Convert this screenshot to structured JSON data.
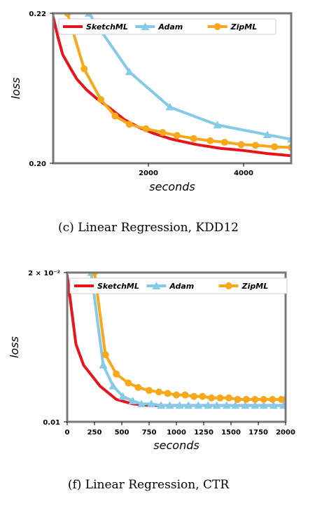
{
  "chart_data": [
    {
      "type": "line",
      "caption": "(c)  Linear Regression, KDD12",
      "xlabel": "seconds",
      "ylabel": "loss",
      "xlim": [
        0,
        5000
      ],
      "ylim": [
        0.2,
        0.22
      ],
      "xticks": [
        2000,
        4000
      ],
      "xtick_labels": [
        "2000",
        "4000"
      ],
      "yticks": [
        0.2,
        0.22
      ],
      "ytick_labels": [
        "0.20",
        "0.22"
      ],
      "legend": "top",
      "series": [
        {
          "name": "SketchML",
          "color": "#e8141b",
          "marker": "none",
          "x": [
            0,
            100,
            200,
            350,
            500,
            700,
            900,
            1200,
            1500,
            1800,
            2100,
            2500,
            3000,
            3500,
            4000,
            4500,
            5000
          ],
          "y": [
            0.2195,
            0.2168,
            0.2145,
            0.2128,
            0.2112,
            0.2098,
            0.2087,
            0.2073,
            0.2058,
            0.2048,
            0.204,
            0.2032,
            0.2025,
            0.202,
            0.2017,
            0.2013,
            0.201
          ]
        },
        {
          "name": "Adam",
          "color": "#87c9e8",
          "marker": "triangle",
          "x": [
            750,
            1600,
            2450,
            3450,
            4500,
            5000
          ],
          "y": [
            0.22,
            0.2122,
            0.2075,
            0.2051,
            0.2038,
            0.2032
          ]
        },
        {
          "name": "ZipML",
          "color": "#f7a81b",
          "marker": "circle",
          "x": [
            300,
            650,
            1000,
            1300,
            1600,
            1950,
            2300,
            2600,
            2950,
            3300,
            3600,
            3950,
            4250,
            4650,
            5000
          ],
          "y": [
            0.22,
            0.2126,
            0.2085,
            0.2063,
            0.2052,
            0.2046,
            0.2041,
            0.2037,
            0.2033,
            0.203,
            0.2028,
            0.2025,
            0.2024,
            0.2022,
            0.2021
          ]
        }
      ]
    },
    {
      "type": "line",
      "caption": "(f)  Linear Regression, CTR",
      "xlabel": "seconds",
      "ylabel": "loss",
      "xlim": [
        0,
        2000
      ],
      "ylim": [
        0.01,
        0.02
      ],
      "ytick_labels": [
        "2 × 10⁻²",
        "0.01"
      ],
      "xticks": [
        0,
        250,
        500,
        750,
        1000,
        1250,
        1500,
        1750,
        2000
      ],
      "xtick_labels": [
        "0",
        "250",
        "500",
        "750",
        "1000",
        "1250",
        "1500",
        "1750",
        "2000"
      ],
      "legend": "top",
      "series": [
        {
          "name": "SketchML",
          "color": "#e8141b",
          "marker": "none",
          "x": [
            0,
            80,
            150,
            300,
            450,
            600,
            750,
            900,
            1100,
            1300,
            1500,
            1700,
            1900,
            2000
          ],
          "y": [
            0.0198,
            0.0152,
            0.0138,
            0.0124,
            0.0115,
            0.0112,
            0.0111,
            0.0111,
            0.0111,
            0.0111,
            0.0111,
            0.0111,
            0.0111,
            0.0111
          ]
        },
        {
          "name": "Adam",
          "color": "#87c9e8",
          "marker": "triangle",
          "x": [
            220,
            330,
            420,
            510,
            600,
            680,
            770,
            860,
            940,
            1030,
            1110,
            1200,
            1290,
            1370,
            1460,
            1540,
            1630,
            1720,
            1800,
            1890,
            1980
          ],
          "y": [
            0.02,
            0.0138,
            0.0124,
            0.0117,
            0.0114,
            0.0112,
            0.0112,
            0.0111,
            0.0111,
            0.0111,
            0.0111,
            0.0111,
            0.0111,
            0.0111,
            0.0111,
            0.0111,
            0.0111,
            0.0111,
            0.0111,
            0.0111,
            0.0111
          ]
        },
        {
          "name": "ZipML",
          "color": "#f7a81b",
          "marker": "circle",
          "x": [
            250,
            350,
            450,
            560,
            650,
            750,
            840,
            920,
            1000,
            1080,
            1160,
            1240,
            1320,
            1400,
            1480,
            1560,
            1640,
            1720,
            1800,
            1880,
            1960,
            2000
          ],
          "y": [
            0.02,
            0.0145,
            0.0132,
            0.0126,
            0.0123,
            0.0121,
            0.012,
            0.0119,
            0.0118,
            0.0118,
            0.0117,
            0.0117,
            0.0116,
            0.0116,
            0.0116,
            0.0115,
            0.0115,
            0.0115,
            0.0115,
            0.0115,
            0.0115,
            0.0115
          ]
        }
      ]
    }
  ]
}
